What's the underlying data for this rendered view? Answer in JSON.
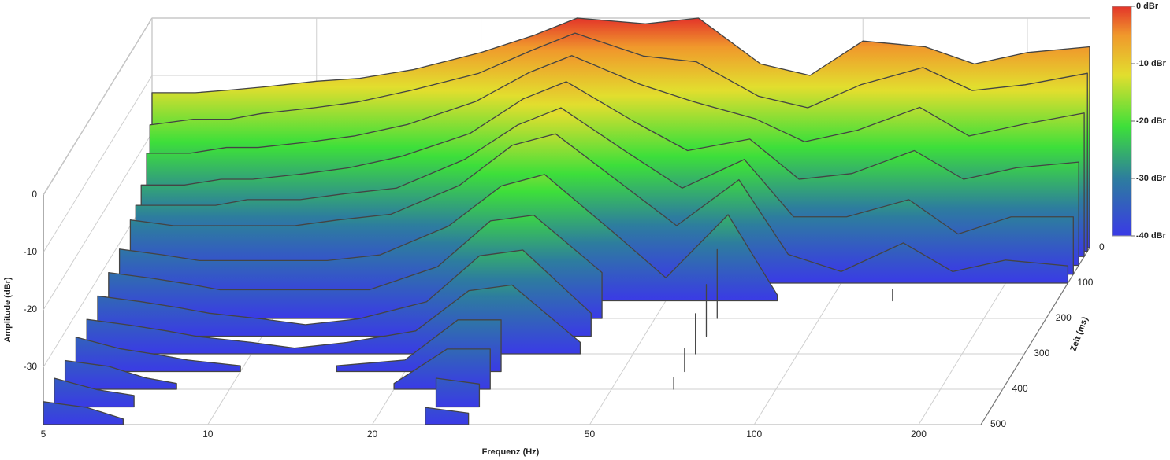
{
  "chart_data": {
    "type": "waterfall",
    "xlabel": "Frequenz (Hz)",
    "ylabel": "Amplitude (dBr)",
    "zlabel": "Zeit (ms)",
    "log_x": true,
    "xlim": [
      5,
      260
    ],
    "xticks": [
      5,
      10,
      20,
      50,
      100,
      200
    ],
    "ylim": [
      -40,
      0
    ],
    "yticks": [
      0,
      -10,
      -20,
      -30
    ],
    "zlim": [
      0,
      500
    ],
    "zticks": [
      0,
      100,
      200,
      300,
      400,
      500
    ],
    "line_color": "#444444",
    "x": [
      5,
      6,
      7,
      8,
      10,
      12,
      15,
      20,
      25,
      30,
      40,
      50,
      65,
      80,
      100,
      130,
      160,
      200,
      260
    ],
    "z": [
      0,
      10,
      25,
      50,
      75,
      100,
      150,
      200,
      250,
      300,
      350,
      400,
      450,
      500
    ],
    "values": [
      [
        -13,
        -13,
        -12.5,
        -12,
        -11,
        -10.5,
        -9,
        -6,
        -3,
        0,
        -1,
        0,
        -8,
        -10,
        -4,
        -5,
        -8,
        -6,
        -5
      ],
      [
        -18,
        -17,
        -17,
        -16,
        -15,
        -14,
        -12,
        -9,
        -5,
        -2,
        -6,
        -7,
        -13,
        -15,
        -11,
        -8,
        -12,
        -11,
        -9
      ],
      [
        -22,
        -22,
        -21,
        -21,
        -20,
        -19,
        -17,
        -13,
        -8,
        -5,
        -10,
        -13,
        -16,
        -20,
        -18,
        -14,
        -19,
        -17,
        -15
      ],
      [
        -26,
        -26,
        -25,
        -25,
        -24,
        -23,
        -21,
        -17,
        -11,
        -8,
        -15,
        -20,
        -18,
        -25,
        -24,
        -20,
        -25,
        -23,
        -22
      ],
      [
        -28,
        -28,
        -28,
        -27,
        -27,
        -26,
        -25,
        -20,
        -14,
        -11,
        -19,
        -25,
        -20,
        -30,
        -30,
        -27,
        -33,
        -30,
        -30
      ],
      [
        -29,
        -30,
        -30,
        -30,
        -30,
        -29,
        -28,
        -23,
        -16,
        -14,
        -23,
        -30,
        -22,
        -35,
        -38,
        -33,
        -38,
        -36,
        -37
      ],
      [
        -31,
        -32,
        -33,
        -33,
        -33,
        -33,
        -32,
        -27,
        -20,
        -18,
        -28,
        -36,
        -25,
        -39,
        null,
        -38,
        null,
        null,
        null
      ],
      [
        -32,
        -33,
        -34,
        -35,
        -35,
        -35,
        -35,
        -31,
        -23,
        -22,
        -32,
        null,
        -28,
        null,
        null,
        null,
        null,
        null,
        null
      ],
      [
        -33,
        -34,
        -35,
        -36,
        -37,
        -38,
        -37,
        -34,
        -26,
        -25,
        -36,
        null,
        -31,
        null,
        null,
        null,
        null,
        null,
        null
      ],
      [
        -34,
        -35,
        -36,
        -37,
        -38,
        -39,
        -38,
        -36,
        -29,
        -28,
        -38,
        null,
        -33,
        null,
        null,
        null,
        null,
        null,
        null
      ],
      [
        -34,
        -36,
        -37,
        -38,
        -39,
        null,
        -39,
        -38,
        -31,
        -31,
        null,
        null,
        -36,
        null,
        null,
        null,
        null,
        null,
        null
      ],
      [
        -35,
        -36,
        -38,
        -39,
        null,
        null,
        null,
        -39,
        -33,
        -33,
        null,
        null,
        -38,
        null,
        null,
        null,
        null,
        null,
        null
      ],
      [
        -35,
        -37,
        -38,
        null,
        null,
        null,
        null,
        null,
        -35,
        -36,
        null,
        null,
        null,
        null,
        null,
        null,
        null,
        null,
        null
      ],
      [
        -36,
        -37,
        -39,
        null,
        null,
        null,
        null,
        null,
        -37,
        -38,
        null,
        null,
        null,
        null,
        null,
        null,
        null,
        null,
        null
      ]
    ],
    "colorscale": [
      {
        "value": 0,
        "color": "#e3342a"
      },
      {
        "value": -5,
        "color": "#f0982c"
      },
      {
        "value": -12,
        "color": "#e2de2e"
      },
      {
        "value": -21,
        "color": "#3ddf3a"
      },
      {
        "value": -30,
        "color": "#2d7d9e"
      },
      {
        "value": -40,
        "color": "#3a3ae6"
      }
    ],
    "colorbar_ticks": [
      {
        "value": 0,
        "label": "0 dBr"
      },
      {
        "value": -10,
        "label": "-10 dBr"
      },
      {
        "value": -20,
        "label": "-20 dBr"
      },
      {
        "value": -30,
        "label": "-30 dBr"
      },
      {
        "value": -40,
        "label": "-40 dBr"
      }
    ]
  }
}
